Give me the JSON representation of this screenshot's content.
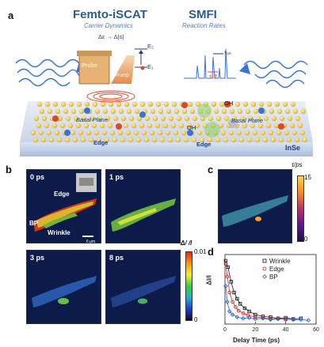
{
  "panel_letters": {
    "a": "a",
    "b": "b",
    "c": "c",
    "d": "d"
  },
  "panel_a": {
    "left_title": "Femto-iSCAT",
    "left_subtitle": "Carrier Dynamics",
    "right_title": "SMFI",
    "right_subtitle": "Reaction Rates",
    "delta_label": "Δε → Δ|s|",
    "probe_label": "Probe",
    "pump_label": "Pump",
    "e2_label": "E₂",
    "e1_label": "E₁",
    "t_on_label": "τₒₙ",
    "t_off_label": "τₒff",
    "basal_left": "Basal Plane",
    "basal_right": "Basal Plane",
    "edge_left": "Edge",
    "edge_right": "Edge",
    "oh_labels": [
      "OH",
      "OH"
    ],
    "material": "InSe"
  },
  "panel_b": {
    "frames": [
      {
        "time": "0 ps"
      },
      {
        "time": "1 ps"
      },
      {
        "time": "3 ps"
      },
      {
        "time": "8 ps"
      }
    ],
    "annotations": {
      "edge": "Edge",
      "bp": "BP",
      "wrinkle": "Wrinkle"
    },
    "scale_bar": "6 μm",
    "colorbar": {
      "title": "Δ/ /l",
      "max": "0.01",
      "min": "0"
    }
  },
  "panel_c": {
    "colorbar": {
      "title": "τ/ps",
      "max": "15",
      "min": "0"
    }
  },
  "chart_data": {
    "type": "scatter",
    "xlabel": "Delay Time (ps)",
    "ylabel": "ΔI/I",
    "xlim": [
      0,
      60
    ],
    "xticks": [
      "0",
      "20",
      "40",
      "60"
    ],
    "legend_position": "top-right",
    "series": [
      {
        "name": "Wrinkle",
        "color": "#111111",
        "x": [
          0.5,
          2,
          4,
          6,
          8,
          10,
          13,
          16,
          20,
          25,
          30,
          35,
          40,
          45,
          50
        ],
        "y": [
          0.95,
          0.85,
          0.62,
          0.45,
          0.35,
          0.27,
          0.2,
          0.15,
          0.1,
          0.07,
          0.06,
          0.04,
          0.05,
          0.03,
          0.04
        ]
      },
      {
        "name": "Edge",
        "color": "#d81b1b",
        "x": [
          0.5,
          1.5,
          3,
          5,
          7,
          9,
          12,
          15,
          20,
          25,
          30,
          35,
          40,
          45
        ],
        "y": [
          0.9,
          0.7,
          0.45,
          0.3,
          0.22,
          0.16,
          0.12,
          0.09,
          0.06,
          0.05,
          0.03,
          0.04,
          0.02,
          0.03
        ]
      },
      {
        "name": "BP",
        "color": "#1f5fd6",
        "x": [
          0.5,
          1.5,
          3,
          5,
          8,
          12,
          16,
          20,
          25,
          30,
          35,
          40,
          45,
          50,
          55
        ],
        "y": [
          0.55,
          0.3,
          0.15,
          0.1,
          0.06,
          0.04,
          0.05,
          0.03,
          0.04,
          0.02,
          0.03,
          0.03,
          0.02,
          0.02,
          0.01
        ]
      }
    ]
  }
}
